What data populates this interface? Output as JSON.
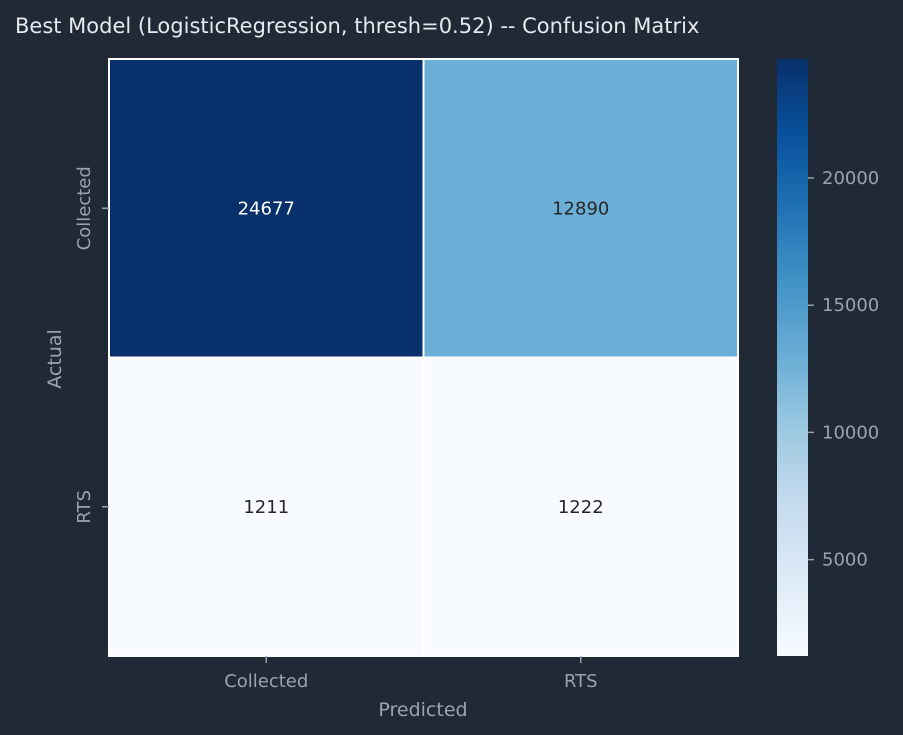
{
  "chart_data": {
    "type": "heatmap",
    "title": "Best Model (LogisticRegression, thresh=0.52) -- Confusion Matrix",
    "xlabel": "Predicted",
    "ylabel": "Actual",
    "x_categories": [
      "Collected",
      "RTS"
    ],
    "y_categories": [
      "Collected",
      "RTS"
    ],
    "values": [
      [
        24677,
        12890
      ],
      [
        1211,
        1222
      ]
    ],
    "colormap": "Blues",
    "colorbar": {
      "range": [
        1211,
        24677
      ],
      "ticks": [
        5000,
        10000,
        15000,
        20000
      ]
    },
    "grid_line_color": "#ffffff"
  }
}
